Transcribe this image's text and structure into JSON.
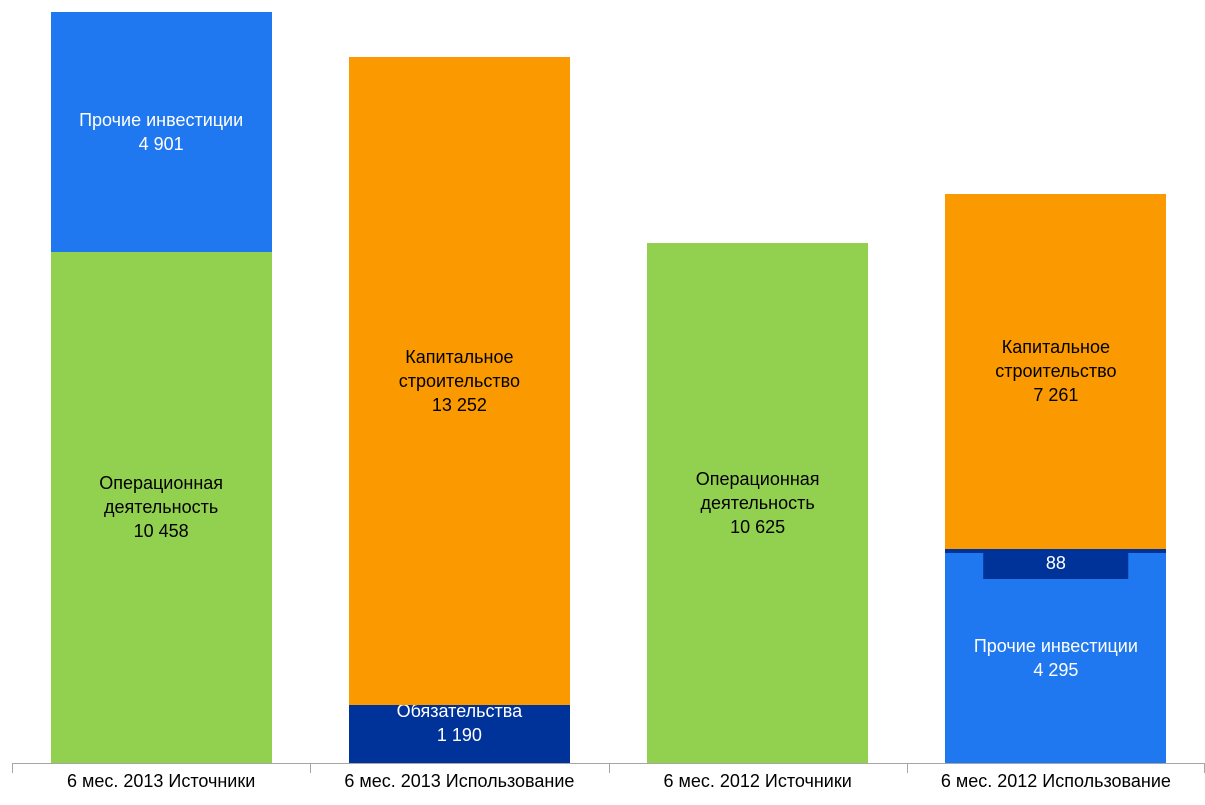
{
  "chart_data": {
    "type": "stacked-bar",
    "categories": [
      "6 мес. 2013 Источники",
      "6 мес. 2013 Использование",
      "6 мес. 2012 Источники",
      "6 мес. 2012 Использование"
    ],
    "series": [
      {
        "name": "Операционная деятельность",
        "color": "#92d050",
        "values": [
          10458,
          null,
          10625,
          null
        ],
        "value_labels": [
          "10 458",
          null,
          "10 625",
          null
        ]
      },
      {
        "name": "Прочие инвестиции",
        "color": "#1f78f0",
        "values": [
          4901,
          null,
          null,
          4295
        ],
        "value_labels": [
          "4 901",
          null,
          null,
          "4 295"
        ]
      },
      {
        "name": "Обязательства",
        "color": "#003399",
        "values": [
          null,
          1190,
          null,
          88
        ],
        "value_labels": [
          null,
          "1 190",
          null,
          "88"
        ]
      },
      {
        "name": "Капитальное строительство",
        "color": "#fb9a00",
        "values": [
          null,
          13252,
          null,
          7261
        ],
        "value_labels": [
          null,
          "13 252",
          null,
          "7 261"
        ]
      }
    ]
  }
}
